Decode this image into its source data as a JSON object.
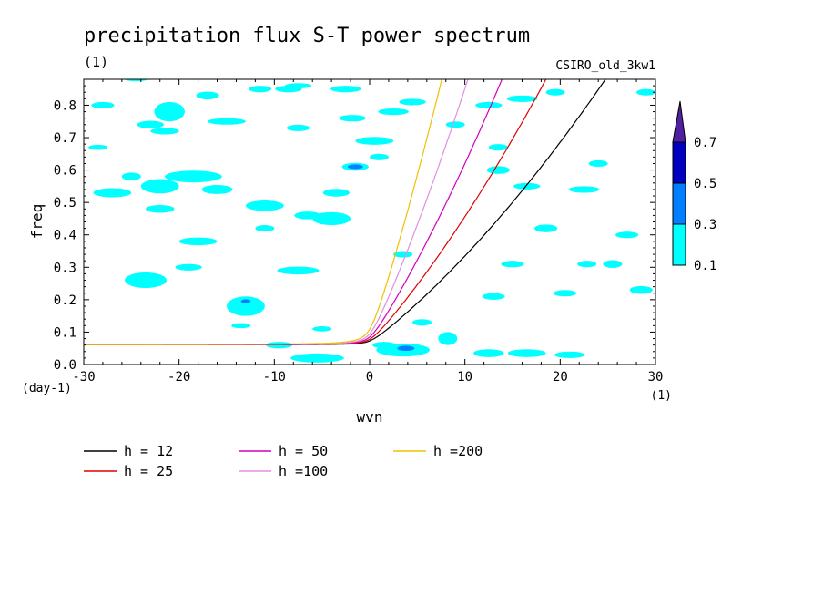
{
  "chart_data": {
    "type": "heatmap",
    "title": "precipitation flux S-T power spectrum",
    "subtitle_left": "(1)",
    "subtitle_right": "CSIRO_old_3kw1",
    "xlabel": "wvn",
    "ylabel": "freq",
    "x_unit": "(1)",
    "y_unit": "(day-1)",
    "xlim": [
      -30,
      30
    ],
    "ylim": [
      0.0,
      0.88
    ],
    "x_ticks": [
      {
        "value": -30,
        "label": "-30"
      },
      {
        "value": -20,
        "label": "-20"
      },
      {
        "value": -10,
        "label": "-10"
      },
      {
        "value": 0,
        "label": "0"
      },
      {
        "value": 10,
        "label": "10"
      },
      {
        "value": 20,
        "label": "20"
      },
      {
        "value": 30,
        "label": "30"
      }
    ],
    "y_ticks": [
      {
        "value": 0.0,
        "label": "0.0"
      },
      {
        "value": 0.1,
        "label": "0.1"
      },
      {
        "value": 0.2,
        "label": "0.2"
      },
      {
        "value": 0.3,
        "label": "0.3"
      },
      {
        "value": 0.4,
        "label": "0.4"
      },
      {
        "value": 0.5,
        "label": "0.5"
      },
      {
        "value": 0.6,
        "label": "0.6"
      },
      {
        "value": 0.7,
        "label": "0.7"
      },
      {
        "value": 0.8,
        "label": "0.8"
      }
    ],
    "colorbar": {
      "levels": [
        "0.1",
        "0.3",
        "0.5",
        "0.7"
      ],
      "colors": [
        "#00ffff",
        "#0080ff",
        "#0000c0",
        "#5020a0"
      ]
    },
    "contours": [
      {
        "level": 0.1,
        "regions": [
          [
            -28,
            0.8,
            1.2,
            0.01
          ],
          [
            -27,
            0.53,
            2.0,
            0.014
          ],
          [
            -25,
            0.58,
            1.0,
            0.012
          ],
          [
            -23.5,
            0.26,
            2.2,
            0.024
          ],
          [
            -23,
            0.74,
            1.4,
            0.012
          ],
          [
            -22,
            0.48,
            1.5,
            0.012
          ],
          [
            -21.5,
            0.72,
            1.5,
            0.01
          ],
          [
            -22,
            0.55,
            2.0,
            0.022
          ],
          [
            -21,
            0.78,
            1.6,
            0.03
          ],
          [
            -19,
            0.3,
            1.4,
            0.01
          ],
          [
            -18,
            0.38,
            2.0,
            0.012
          ],
          [
            -18.5,
            0.58,
            3.0,
            0.018
          ],
          [
            -17,
            0.83,
            1.2,
            0.012
          ],
          [
            -16,
            0.54,
            1.6,
            0.014
          ],
          [
            -15,
            0.75,
            2.0,
            0.01
          ],
          [
            -13,
            0.18,
            2.0,
            0.03
          ],
          [
            -11.5,
            0.85,
            1.2,
            0.01
          ],
          [
            -11,
            0.49,
            2.0,
            0.016
          ],
          [
            -11,
            0.42,
            1.0,
            0.01
          ],
          [
            -9.5,
            0.06,
            1.4,
            0.01
          ],
          [
            -8.5,
            0.85,
            1.4,
            0.01
          ],
          [
            -7.5,
            0.73,
            1.2,
            0.01
          ],
          [
            -7.5,
            0.29,
            2.2,
            0.012
          ],
          [
            -6.5,
            0.46,
            1.4,
            0.012
          ],
          [
            -5.5,
            0.02,
            2.8,
            0.014
          ],
          [
            -4,
            0.45,
            2.0,
            0.02
          ],
          [
            -3.5,
            0.53,
            1.4,
            0.012
          ],
          [
            -2.5,
            0.85,
            1.6,
            0.01
          ],
          [
            -1.5,
            0.61,
            1.4,
            0.012
          ],
          [
            -1.8,
            0.76,
            1.4,
            0.01
          ],
          [
            0.5,
            0.69,
            2.0,
            0.012
          ],
          [
            1,
            0.64,
            1.0,
            0.01
          ],
          [
            1.5,
            0.06,
            1.2,
            0.01
          ],
          [
            2.5,
            0.78,
            1.6,
            0.01
          ],
          [
            3.5,
            0.045,
            2.8,
            0.02
          ],
          [
            3.5,
            0.34,
            1.0,
            0.01
          ],
          [
            4.5,
            0.81,
            1.4,
            0.01
          ],
          [
            5.5,
            0.13,
            1.0,
            0.01
          ],
          [
            8.2,
            0.08,
            1.0,
            0.02
          ],
          [
            9,
            0.74,
            1.0,
            0.01
          ],
          [
            12.5,
            0.035,
            1.6,
            0.012
          ],
          [
            12.5,
            0.8,
            1.4,
            0.01
          ],
          [
            13.5,
            0.6,
            1.2,
            0.012
          ],
          [
            13.5,
            0.67,
            1.0,
            0.01
          ],
          [
            13,
            0.21,
            1.2,
            0.01
          ],
          [
            15,
            0.31,
            1.2,
            0.01
          ],
          [
            16.5,
            0.55,
            1.4,
            0.01
          ],
          [
            16.5,
            0.035,
            2.0,
            0.012
          ],
          [
            16,
            0.82,
            1.6,
            0.01
          ],
          [
            18.5,
            0.42,
            1.2,
            0.012
          ],
          [
            19.5,
            0.84,
            1.0,
            0.01
          ],
          [
            20.5,
            0.22,
            1.2,
            0.01
          ],
          [
            21,
            0.03,
            1.6,
            0.01
          ],
          [
            22.5,
            0.54,
            1.6,
            0.01
          ],
          [
            22.8,
            0.31,
            1.0,
            0.01
          ],
          [
            24,
            0.62,
            1.0,
            0.01
          ],
          [
            25.5,
            0.31,
            1.0,
            0.012
          ],
          [
            27,
            0.4,
            1.2,
            0.01
          ],
          [
            28.5,
            0.23,
            1.2,
            0.012
          ],
          [
            29,
            0.84,
            1.0,
            0.01
          ],
          [
            -7.5,
            0.86,
            1.4,
            0.008
          ],
          [
            -5,
            0.11,
            1.0,
            0.008
          ],
          [
            -13.5,
            0.12,
            1.0,
            0.008
          ],
          [
            -28.5,
            0.67,
            1.0,
            0.008
          ],
          [
            -24.5,
            0.88,
            1.2,
            0.006
          ]
        ]
      },
      {
        "level": 0.3,
        "regions": [
          [
            -1.5,
            0.61,
            0.8,
            0.007
          ],
          [
            3.8,
            0.05,
            0.9,
            0.008
          ],
          [
            -13,
            0.195,
            0.5,
            0.006
          ]
        ]
      }
    ],
    "dispersion_curves": [
      {
        "name": "h = 12",
        "h": 12,
        "color": "#000000"
      },
      {
        "name": "h = 25",
        "h": 25,
        "color": "#e00000"
      },
      {
        "name": "h = 50",
        "h": 50,
        "color": "#d000c0"
      },
      {
        "name": "h =100",
        "h": 100,
        "color": "#e090e0"
      },
      {
        "name": "h =200",
        "h": 200,
        "color": "#f0c000"
      }
    ],
    "legend_placement": "bottom"
  }
}
